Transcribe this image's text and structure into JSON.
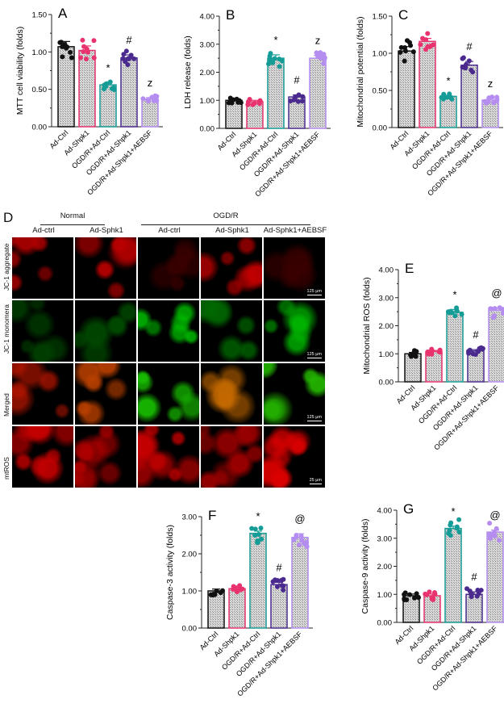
{
  "figure": {
    "groups": [
      "Ad-Ctrl",
      "Ad-Shpk1",
      "OGD/R+Ad-Ctrl",
      "OGD/R+Ad-Shpk1",
      "OGD/R+Ad-Shpk1+AEBSF"
    ],
    "group_colors": [
      "#111111",
      "#e8336e",
      "#159c96",
      "#4b2a8f",
      "#b58cf0"
    ]
  },
  "chart_data": [
    {
      "panel": "A",
      "type": "bar",
      "title": "",
      "ylabel": "MTT cell viability (folds)",
      "ylim": [
        0,
        1.5
      ],
      "yticks": [
        "0.00",
        "0.50",
        "1.00",
        "1.50"
      ],
      "categories": [
        "Ad-Ctrl",
        "Ad-Shpk1",
        "OGD/R+Ad-Ctrl",
        "OGD/R+Ad-Shpk1",
        "OGD/R+Ad-Shpk1+AEBSF"
      ],
      "values": [
        1.07,
        1.02,
        0.56,
        0.92,
        0.37
      ],
      "errors": [
        0.07,
        0.06,
        0.03,
        0.04,
        0.02
      ],
      "annotations": [
        "",
        "",
        "*",
        "#",
        "z"
      ]
    },
    {
      "panel": "B",
      "type": "bar",
      "title": "",
      "ylabel": "LDH release (folds)",
      "ylim": [
        0,
        4
      ],
      "yticks": [
        "0.00",
        "1.00",
        "2.00",
        "3.00",
        "4.00"
      ],
      "categories": [
        "Ad-Ctrl",
        "Ad-Shpk1",
        "OGD/R+Ad-Ctrl",
        "OGD/R+Ad-Shpk1",
        "OGD/R+Ad-Shpk1+AEBSF"
      ],
      "values": [
        1.0,
        0.95,
        2.5,
        1.12,
        2.5
      ],
      "errors": [
        0.04,
        0.05,
        0.12,
        0.07,
        0.1
      ],
      "annotations": [
        "",
        "",
        "*",
        "#",
        "z"
      ]
    },
    {
      "panel": "C",
      "type": "bar",
      "title": "",
      "ylabel": "Mitochondrial potential (folds)",
      "ylim": [
        0,
        1.5
      ],
      "yticks": [
        "0.00",
        "0.50",
        "1.00",
        "1.50"
      ],
      "categories": [
        "Ad-Ctrl",
        "Ad-Shpk1",
        "OGD/R+Ad-Ctrl",
        "OGD/R+Ad-Shpk1",
        "OGD/R+Ad-Shpk1+AEBSF"
      ],
      "values": [
        1.03,
        1.16,
        0.42,
        0.84,
        0.37
      ],
      "errors": [
        0.06,
        0.04,
        0.01,
        0.05,
        0.02
      ],
      "annotations": [
        "",
        "",
        "*",
        "#",
        "z"
      ]
    },
    {
      "panel": "E",
      "type": "bar",
      "title": "",
      "ylabel": "Mitochondrial ROS (folds)",
      "ylim": [
        0,
        4
      ],
      "yticks": [
        "0.00",
        "1.00",
        "2.00",
        "3.00",
        "4.00"
      ],
      "categories": [
        "Ad-Ctrl",
        "Ad-Shpk1",
        "OGD/R+Ad-Ctrl",
        "OGD/R+Ad-Shpk1",
        "OGD/R+Ad-Shpk1+AEBSF"
      ],
      "values": [
        1.0,
        1.08,
        2.48,
        1.1,
        2.55
      ],
      "errors": [
        0.05,
        0.04,
        0.1,
        0.05,
        0.09
      ],
      "annotations": [
        "",
        "",
        "*",
        "#",
        "@"
      ]
    },
    {
      "panel": "F",
      "type": "bar",
      "title": "",
      "ylabel": "Caspase-3 activity (folds)",
      "ylim": [
        0,
        3
      ],
      "yticks": [
        "0.00",
        "1.00",
        "2.00",
        "3.00"
      ],
      "categories": [
        "Ad-Ctrl",
        "Ad-Shpk1",
        "OGD/R+Ad-Ctrl",
        "OGD/R+Ad-Shpk1",
        "OGD/R+Ad-Shpk1+AEBSF"
      ],
      "values": [
        1.0,
        1.06,
        2.55,
        1.17,
        2.44
      ],
      "errors": [
        0.05,
        0.03,
        0.06,
        0.06,
        0.1
      ],
      "annotations": [
        "",
        "",
        "*",
        "#",
        "@"
      ]
    },
    {
      "panel": "G",
      "type": "bar",
      "title": "",
      "ylabel": "Caspase-9 activity (folds)",
      "ylim": [
        0,
        4
      ],
      "yticks": [
        "0.00",
        "1.00",
        "2.00",
        "3.00",
        "4.00"
      ],
      "categories": [
        "Ad-Ctrl",
        "Ad-Shpk1",
        "OGD/R+Ad-Ctrl",
        "OGD/R+Ad-Shpk1",
        "OGD/R+Ad-Shpk1+AEBSF"
      ],
      "values": [
        0.95,
        0.95,
        3.35,
        1.0,
        3.22
      ],
      "errors": [
        0.06,
        0.06,
        0.08,
        0.09,
        0.07
      ],
      "annotations": [
        "",
        "",
        "*",
        "#",
        "@"
      ]
    }
  ],
  "micrographs": {
    "letter": "D",
    "group_labels": {
      "normal": "Normal",
      "ogdr": "OGD/R"
    },
    "columns": [
      "Ad-ctrl",
      "Ad-Sphk1",
      "Ad-ctrl",
      "Ad-Sphk1",
      "Ad-Sphk1+AEBSF"
    ],
    "rows": [
      "JC-1 aggregate",
      "JC-1 monomera",
      "Merged",
      "mtROS"
    ],
    "scale_bars": {
      "jc1": "125 μm",
      "mtros": "25 μm"
    }
  }
}
